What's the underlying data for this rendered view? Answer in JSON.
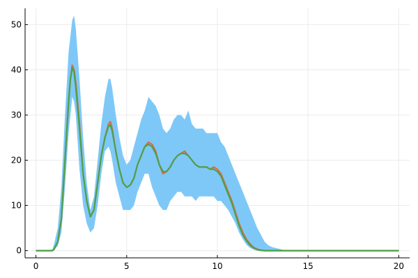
{
  "chart_data": {
    "type": "line",
    "title": "",
    "xlabel": "",
    "ylabel": "",
    "xlim": [
      -0.6,
      20.6
    ],
    "ylim": [
      -1.6,
      53.6
    ],
    "xticks": [
      0,
      5,
      10,
      15,
      20
    ],
    "yticks": [
      0,
      10,
      20,
      30,
      40,
      50
    ],
    "xtick_labels": [
      "0",
      "5",
      "10",
      "15",
      "20"
    ],
    "ytick_labels": [
      "0",
      "10",
      "20",
      "30",
      "40",
      "50"
    ],
    "grid": true,
    "legend": "none",
    "colors": {
      "band": "#7ec8f8",
      "noisy": "#e0683e",
      "smooth": "#4ba14a",
      "grid": "#ebebeb",
      "axis": "#000000"
    },
    "band": {
      "x": [
        0,
        0.9,
        1.0,
        1.2,
        1.4,
        1.6,
        1.8,
        2.0,
        2.1,
        2.2,
        2.4,
        2.6,
        2.8,
        3.0,
        3.2,
        3.4,
        3.6,
        3.8,
        4.0,
        4.1,
        4.2,
        4.4,
        4.6,
        4.8,
        5.0,
        5.2,
        5.4,
        5.6,
        5.8,
        6.0,
        6.2,
        6.4,
        6.6,
        6.8,
        7.0,
        7.2,
        7.4,
        7.6,
        7.8,
        8.0,
        8.2,
        8.4,
        8.6,
        8.8,
        9.0,
        9.2,
        9.4,
        9.6,
        9.8,
        10.0,
        10.2,
        10.4,
        10.6,
        10.8,
        11.0,
        11.2,
        11.4,
        11.6,
        11.8,
        12.0,
        12.2,
        12.4,
        12.6,
        12.8,
        13.0,
        13.2,
        13.4,
        13.6,
        14,
        20
      ],
      "upper": [
        0,
        0.2,
        1.5,
        5,
        14,
        30,
        44,
        51,
        52,
        49,
        38,
        25,
        15,
        9,
        12,
        20,
        28,
        34,
        38,
        38,
        36,
        30,
        25,
        21,
        19,
        20,
        23,
        26,
        29,
        31,
        34,
        33,
        32,
        30,
        27,
        26,
        27,
        29,
        30,
        30,
        29,
        31,
        28,
        27,
        27,
        27,
        26,
        26,
        26,
        26,
        24,
        23,
        21,
        19,
        17,
        15,
        13,
        11,
        9,
        7,
        5,
        3.5,
        2,
        1.2,
        0.8,
        0.6,
        0.4,
        0.2,
        0,
        0
      ],
      "lower": [
        0,
        0,
        0.3,
        1,
        4,
        14,
        26,
        34,
        33,
        30,
        18,
        10,
        6,
        4,
        5,
        10,
        17,
        22,
        23,
        22,
        20,
        15,
        12,
        9,
        9,
        9,
        10,
        13,
        15,
        17,
        17,
        14,
        12,
        10,
        9,
        9,
        11,
        12,
        13,
        13,
        12,
        12,
        12,
        11,
        12,
        12,
        12,
        12,
        12,
        11,
        11,
        10,
        9,
        7.5,
        6,
        4,
        2.5,
        1.3,
        0.6,
        0.2,
        0,
        0,
        0,
        0,
        0,
        0,
        0,
        0,
        0,
        0
      ]
    },
    "series": [
      {
        "x": [
          0,
          0.9,
          1.0,
          1.2,
          1.4,
          1.6,
          1.8,
          1.9,
          2.0,
          2.1,
          2.2,
          2.4,
          2.6,
          2.8,
          3.0,
          3.2,
          3.4,
          3.6,
          3.8,
          4.0,
          4.1,
          4.2,
          4.4,
          4.6,
          4.8,
          5.0,
          5.2,
          5.4,
          5.6,
          5.8,
          6.0,
          6.2,
          6.4,
          6.6,
          6.8,
          7.0,
          7.2,
          7.4,
          7.6,
          7.8,
          8.0,
          8.2,
          8.4,
          8.6,
          8.8,
          9.0,
          9.2,
          9.4,
          9.6,
          9.8,
          10.0,
          10.2,
          10.4,
          10.6,
          10.8,
          11.0,
          11.2,
          11.4,
          11.6,
          11.8,
          12.0,
          12.2,
          12.4,
          12.6,
          12.8,
          13.0,
          13.2,
          14,
          20
        ],
        "y": [
          0,
          0,
          0.3,
          2,
          7,
          20,
          33,
          38,
          41,
          40,
          37,
          28,
          17,
          11,
          7.5,
          9,
          15,
          21,
          25,
          28,
          28.5,
          27,
          22,
          18,
          15,
          14,
          14.5,
          16,
          19,
          21,
          23,
          24,
          23.5,
          22,
          19,
          17,
          17.5,
          18.5,
          20,
          21,
          21.5,
          22,
          21,
          20,
          19,
          18.5,
          18.5,
          18.5,
          18,
          18.5,
          18,
          17,
          15,
          13,
          11,
          8.5,
          6,
          4,
          2.5,
          1.5,
          0.7,
          0.3,
          0.1,
          0,
          0,
          0,
          0,
          0,
          0
        ]
      },
      {
        "x": [
          0,
          0.9,
          1.0,
          1.2,
          1.4,
          1.6,
          1.8,
          1.9,
          2.0,
          2.1,
          2.2,
          2.4,
          2.6,
          2.8,
          3.0,
          3.2,
          3.4,
          3.6,
          3.8,
          4.0,
          4.1,
          4.2,
          4.4,
          4.6,
          4.8,
          5.0,
          5.2,
          5.4,
          5.6,
          5.8,
          6.0,
          6.2,
          6.4,
          6.6,
          6.8,
          7.0,
          7.2,
          7.4,
          7.6,
          7.8,
          8.0,
          8.2,
          8.4,
          8.6,
          8.8,
          9.0,
          9.2,
          9.4,
          9.6,
          9.8,
          10.0,
          10.2,
          10.4,
          10.6,
          10.8,
          11.0,
          11.2,
          11.4,
          11.6,
          11.8,
          12.0,
          12.2,
          12.4,
          12.6,
          12.8,
          13.0,
          13.2,
          14,
          20
        ],
        "y": [
          0,
          0,
          0.3,
          2,
          7,
          20,
          33,
          38,
          40.5,
          39.5,
          36,
          27,
          17,
          11,
          7.5,
          9,
          15,
          21,
          25,
          27.5,
          27.8,
          26.5,
          22,
          18,
          15,
          14,
          14.5,
          16,
          19,
          21,
          23,
          23.5,
          23,
          21.5,
          19,
          17.5,
          17.5,
          18.5,
          20,
          21,
          21.5,
          21.5,
          21,
          20,
          19,
          18.5,
          18.5,
          18.5,
          18,
          18,
          17.5,
          16.5,
          14.5,
          12.5,
          10.5,
          8,
          5.5,
          3.5,
          2.2,
          1.2,
          0.6,
          0.2,
          0.05,
          0,
          0,
          0,
          0,
          0,
          0
        ]
      }
    ]
  }
}
